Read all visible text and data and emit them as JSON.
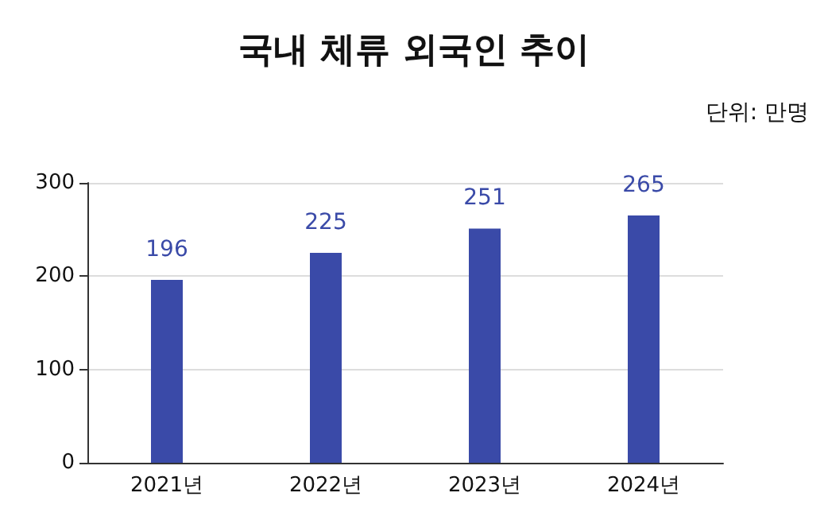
{
  "chart_data": {
    "type": "bar",
    "title": "국내 체류 외국인 추이",
    "annotations": [
      "단위: 만명"
    ],
    "categories": [
      "2021년",
      "2022년",
      "2023년",
      "2024년"
    ],
    "values": [
      196,
      225,
      251,
      265
    ],
    "color": "#3a4aa8",
    "ylim": [
      0,
      300
    ],
    "yticks": [
      0,
      100,
      200,
      300
    ],
    "grid": "y",
    "data_labels": true
  }
}
